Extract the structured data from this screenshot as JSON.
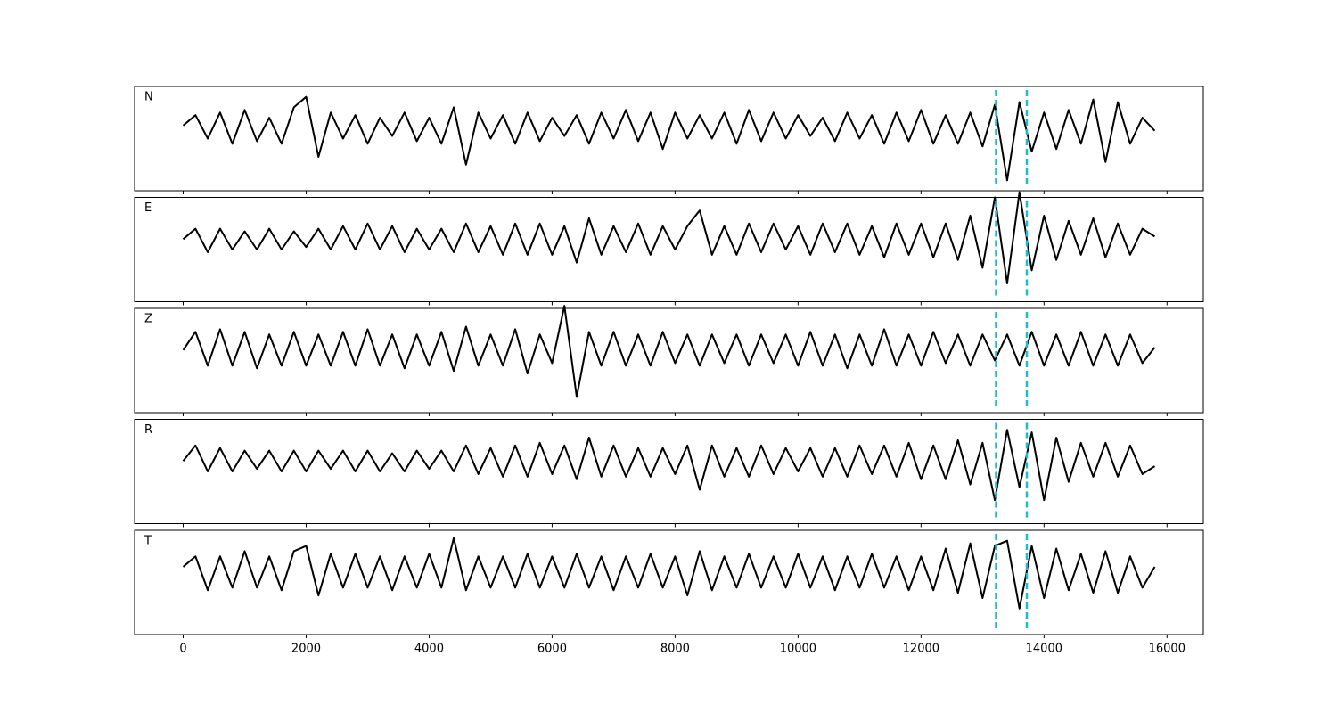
{
  "chart_data": {
    "type": "line",
    "x": [
      0,
      200,
      400,
      600,
      800,
      1000,
      1200,
      1400,
      1600,
      1800,
      2000,
      2200,
      2400,
      2600,
      2800,
      3000,
      3200,
      3400,
      3600,
      3800,
      4000,
      4200,
      4400,
      4600,
      4800,
      5000,
      5200,
      5400,
      5600,
      5800,
      6000,
      6200,
      6400,
      6600,
      6800,
      7000,
      7200,
      7400,
      7600,
      7800,
      8000,
      8200,
      8400,
      8600,
      8800,
      9000,
      9200,
      9400,
      9600,
      9800,
      10000,
      10200,
      10400,
      10600,
      10800,
      11000,
      11200,
      11400,
      11600,
      11800,
      12000,
      12200,
      12400,
      12600,
      12800,
      13000,
      13200,
      13400,
      13600,
      13800,
      14000,
      14200,
      14400,
      14600,
      14800,
      15000,
      15200,
      15400,
      15600,
      15800
    ],
    "xlim": [
      -790,
      16590
    ],
    "xticks": [
      0,
      2000,
      4000,
      6000,
      8000,
      10000,
      12000,
      14000,
      16000
    ],
    "ylim": [
      -1.2,
      0.8
    ],
    "grid": false,
    "series": [
      {
        "name": "N",
        "color": "#000000",
        "values": [
          0.05,
          0.25,
          -0.2,
          0.3,
          -0.3,
          0.35,
          -0.25,
          0.2,
          -0.3,
          0.4,
          0.6,
          -0.55,
          0.3,
          -0.2,
          0.25,
          -0.3,
          0.2,
          -0.15,
          0.3,
          -0.25,
          0.2,
          -0.3,
          0.4,
          -0.7,
          0.3,
          -0.2,
          0.25,
          -0.3,
          0.3,
          -0.25,
          0.2,
          -0.15,
          0.25,
          -0.3,
          0.3,
          -0.2,
          0.35,
          -0.25,
          0.3,
          -0.4,
          0.3,
          -0.2,
          0.25,
          -0.2,
          0.3,
          -0.3,
          0.35,
          -0.25,
          0.3,
          -0.2,
          0.25,
          -0.15,
          0.2,
          -0.25,
          0.3,
          -0.2,
          0.25,
          -0.3,
          0.3,
          -0.25,
          0.35,
          -0.3,
          0.25,
          -0.3,
          0.3,
          -0.35,
          0.45,
          -1.0,
          0.5,
          -0.45,
          0.3,
          -0.4,
          0.35,
          -0.3,
          0.55,
          -0.65,
          0.5,
          -0.3,
          0.2,
          -0.05
        ]
      },
      {
        "name": "E",
        "color": "#000000",
        "values": [
          0.0,
          0.2,
          -0.25,
          0.2,
          -0.2,
          0.15,
          -0.2,
          0.2,
          -0.2,
          0.15,
          -0.15,
          0.2,
          -0.2,
          0.25,
          -0.2,
          0.3,
          -0.2,
          0.25,
          -0.25,
          0.2,
          -0.2,
          0.2,
          -0.25,
          0.3,
          -0.25,
          0.25,
          -0.3,
          0.3,
          -0.3,
          0.3,
          -0.3,
          0.25,
          -0.45,
          0.4,
          -0.3,
          0.25,
          -0.25,
          0.3,
          -0.3,
          0.25,
          -0.2,
          0.25,
          0.55,
          -0.3,
          0.25,
          -0.3,
          0.3,
          -0.25,
          0.3,
          -0.2,
          0.25,
          -0.3,
          0.3,
          -0.25,
          0.3,
          -0.3,
          0.25,
          -0.35,
          0.3,
          -0.3,
          0.3,
          -0.35,
          0.3,
          -0.4,
          0.45,
          -0.55,
          0.8,
          -0.85,
          0.9,
          -0.6,
          0.45,
          -0.4,
          0.35,
          -0.3,
          0.4,
          -0.35,
          0.3,
          -0.3,
          0.2,
          0.05
        ]
      },
      {
        "name": "Z",
        "color": "#000000",
        "values": [
          0.0,
          0.35,
          -0.3,
          0.4,
          -0.3,
          0.35,
          -0.35,
          0.3,
          -0.3,
          0.35,
          -0.3,
          0.3,
          -0.3,
          0.35,
          -0.3,
          0.4,
          -0.3,
          0.3,
          -0.35,
          0.3,
          -0.3,
          0.35,
          -0.4,
          0.45,
          -0.3,
          0.3,
          -0.3,
          0.4,
          -0.45,
          0.3,
          -0.25,
          0.85,
          -0.9,
          0.35,
          -0.3,
          0.35,
          -0.3,
          0.3,
          -0.3,
          0.35,
          -0.25,
          0.3,
          -0.3,
          0.3,
          -0.25,
          0.3,
          -0.3,
          0.3,
          -0.25,
          0.3,
          -0.3,
          0.35,
          -0.3,
          0.3,
          -0.35,
          0.3,
          -0.3,
          0.4,
          -0.3,
          0.3,
          -0.3,
          0.35,
          -0.25,
          0.3,
          -0.3,
          0.3,
          -0.2,
          0.3,
          -0.3,
          0.35,
          -0.3,
          0.3,
          -0.3,
          0.35,
          -0.3,
          0.3,
          -0.3,
          0.3,
          -0.25,
          0.05
        ]
      },
      {
        "name": "R",
        "color": "#000000",
        "values": [
          0.0,
          0.3,
          -0.2,
          0.25,
          -0.2,
          0.2,
          -0.15,
          0.2,
          -0.2,
          0.2,
          -0.2,
          0.2,
          -0.15,
          0.2,
          -0.2,
          0.2,
          -0.2,
          0.15,
          -0.2,
          0.2,
          -0.15,
          0.2,
          -0.2,
          0.3,
          -0.25,
          0.25,
          -0.3,
          0.3,
          -0.3,
          0.35,
          -0.25,
          0.3,
          -0.35,
          0.45,
          -0.3,
          0.3,
          -0.3,
          0.25,
          -0.3,
          0.25,
          -0.25,
          0.3,
          -0.55,
          0.3,
          -0.3,
          0.25,
          -0.3,
          0.3,
          -0.25,
          0.25,
          -0.2,
          0.25,
          -0.3,
          0.25,
          -0.3,
          0.3,
          -0.25,
          0.3,
          -0.3,
          0.35,
          -0.35,
          0.3,
          -0.35,
          0.4,
          -0.45,
          0.35,
          -0.75,
          0.6,
          -0.5,
          0.55,
          -0.75,
          0.45,
          -0.4,
          0.35,
          -0.3,
          0.35,
          -0.3,
          0.3,
          -0.25,
          -0.1
        ]
      },
      {
        "name": "T",
        "color": "#000000",
        "values": [
          0.1,
          0.3,
          -0.35,
          0.3,
          -0.3,
          0.4,
          -0.3,
          0.3,
          -0.35,
          0.4,
          0.5,
          -0.45,
          0.35,
          -0.3,
          0.35,
          -0.3,
          0.3,
          -0.35,
          0.3,
          -0.3,
          0.35,
          -0.3,
          0.65,
          -0.35,
          0.3,
          -0.3,
          0.3,
          -0.3,
          0.35,
          -0.3,
          0.3,
          -0.3,
          0.35,
          -0.3,
          0.3,
          -0.35,
          0.3,
          -0.3,
          0.35,
          -0.3,
          0.3,
          -0.45,
          0.4,
          -0.35,
          0.3,
          -0.3,
          0.35,
          -0.3,
          0.3,
          -0.3,
          0.35,
          -0.3,
          0.3,
          -0.35,
          0.3,
          -0.3,
          0.35,
          -0.3,
          0.3,
          -0.35,
          0.3,
          -0.35,
          0.45,
          -0.4,
          0.55,
          -0.5,
          0.5,
          0.6,
          -0.7,
          0.5,
          -0.5,
          0.45,
          -0.35,
          0.35,
          -0.4,
          0.4,
          -0.4,
          0.3,
          -0.3,
          0.1
        ]
      }
    ],
    "vlines": {
      "x": [
        13220,
        13720
      ],
      "color": "#17becf"
    }
  }
}
